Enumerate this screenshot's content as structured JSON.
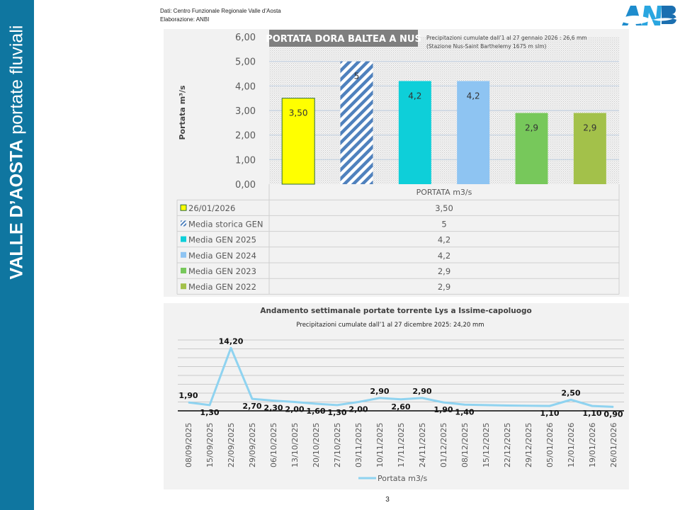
{
  "sidebar": {
    "title_bold": "VALLE D’AOSTA",
    "title_light": "portate fluviali"
  },
  "source": {
    "line1": "Dati: Centro Funzionale Regionale Valle d’Aosta",
    "line2": "Elaborazione: ANBI"
  },
  "logo": {
    "text": "ANBI",
    "icon": "anbi-logo-icon"
  },
  "page_number": "3",
  "colors": {
    "sidebar": "#0f76a0",
    "line": "#8fd3f0"
  },
  "chart_data": [
    {
      "type": "bar",
      "title": "PORTATA DORA BALTEA A NUS",
      "subtitle_line1": "Precipitazioni cumulate dall’1 al 27 gennaio 2026 : 26,6 mm",
      "subtitle_line2": "(Stazione Nus-Saint Barthelemy 1675 m slm)",
      "ylabel": "Portata m³/s",
      "xlabel": "PORTATA m3/s",
      "ylim": [
        0,
        6
      ],
      "yticks": [
        "0,00",
        "1,00",
        "2,00",
        "3,00",
        "4,00",
        "5,00",
        "6,00"
      ],
      "grid": true,
      "series": [
        {
          "name": "26/01/2026",
          "value": 3.5,
          "label": "3,50",
          "color": "#ffff00",
          "pattern": "solid-outlined"
        },
        {
          "name": "Media storica GEN",
          "value": 5,
          "label": "5",
          "color": "#4f81bd",
          "pattern": "diagonal-stripes"
        },
        {
          "name": "Media GEN 2025",
          "value": 4.2,
          "label": "4,2",
          "color": "#0ecfd9",
          "pattern": "solid"
        },
        {
          "name": "Media GEN 2024",
          "value": 4.2,
          "label": "4,2",
          "color": "#8ec4f2",
          "pattern": "solid"
        },
        {
          "name": "Media GEN 2023",
          "value": 2.9,
          "label": "2,9",
          "color": "#77c85b",
          "pattern": "solid"
        },
        {
          "name": "Media GEN 2022",
          "value": 2.9,
          "label": "2,9",
          "color": "#a3c14a",
          "pattern": "solid"
        }
      ],
      "table_header": "PORTATA m3/s"
    },
    {
      "type": "line",
      "title": "Andamento settimanale portate torrente Lys a Issime-capoluogo",
      "subtitle": "Precipitazioni cumulate dall’1 al 27 dicembre 2025: 24,20 mm",
      "legend": "Portata m3/s",
      "legend_position": "bottom",
      "ylim": [
        0,
        16
      ],
      "grid": true,
      "x": [
        "08/09/2025",
        "15/09/2025",
        "22/09/2025",
        "29/09/2025",
        "06/10/2025",
        "13/10/2025",
        "20/10/2025",
        "27/10/2025",
        "03/11/2025",
        "10/11/2025",
        "17/11/2025",
        "24/11/2025",
        "01/12/2025",
        "08/12/2025",
        "15/12/2025",
        "22/12/2025",
        "29/12/2025",
        "05/01/2026",
        "12/01/2026",
        "19/01/2026",
        "26/01/2026"
      ],
      "values": [
        1.9,
        1.3,
        14.2,
        2.7,
        2.3,
        2.0,
        1.6,
        1.3,
        2.0,
        2.9,
        2.6,
        2.9,
        1.9,
        1.4,
        1.3,
        1.2,
        1.15,
        1.1,
        2.5,
        1.1,
        0.9
      ],
      "labels": [
        "1,90",
        "1,30",
        "14,20",
        "2,70",
        "2,30",
        "2,00",
        "1,60",
        "1,30",
        "2,00",
        "2,90",
        "2,60",
        "2,90",
        "1,90",
        "1,40",
        "",
        "",
        "",
        "1,10",
        "2,50",
        "1,10",
        "0,90"
      ]
    }
  ]
}
